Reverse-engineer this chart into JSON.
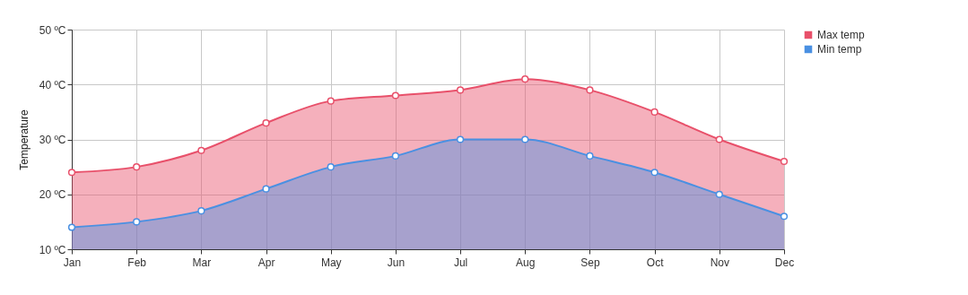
{
  "chart_data": {
    "type": "area",
    "ylabel": "Temperature",
    "categories": [
      "Jan",
      "Feb",
      "Mar",
      "Apr",
      "May",
      "Jun",
      "Jul",
      "Aug",
      "Sep",
      "Oct",
      "Nov",
      "Dec"
    ],
    "series": [
      {
        "name": "Max temp",
        "color": "#e8506a",
        "values": [
          24,
          25,
          28,
          33,
          37,
          38,
          39,
          41,
          39,
          35,
          30,
          26
        ]
      },
      {
        "name": "Min temp",
        "color": "#4a90e2",
        "values": [
          14,
          15,
          17,
          21,
          25,
          27,
          30,
          30,
          27,
          24,
          20,
          16
        ]
      }
    ],
    "ylim": [
      10,
      50
    ],
    "yticks": [
      {
        "value": 10,
        "label": "10 ºC"
      },
      {
        "value": 20,
        "label": "20 ºC"
      },
      {
        "value": 30,
        "label": "30 ºC"
      },
      {
        "value": 40,
        "label": "40 ºC"
      },
      {
        "value": 50,
        "label": "50 ºC"
      }
    ],
    "grid": true,
    "legend": "top right",
    "marker": "circle",
    "line_style": "solid"
  }
}
